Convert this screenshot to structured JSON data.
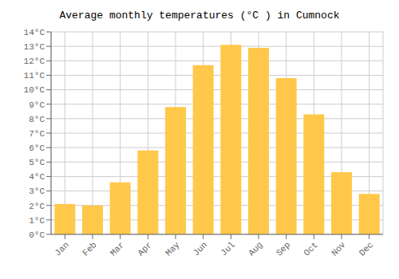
{
  "chart_data": {
    "type": "bar",
    "title": "Average monthly temperatures (°C ) in Cumnock",
    "categories": [
      "Jan",
      "Feb",
      "Mar",
      "Apr",
      "May",
      "Jun",
      "Jul",
      "Aug",
      "Sep",
      "Oct",
      "Nov",
      "Dec"
    ],
    "values": [
      2.1,
      2.0,
      3.6,
      5.8,
      8.8,
      11.7,
      13.1,
      12.9,
      10.8,
      8.3,
      4.3,
      2.8
    ],
    "color": "#FFC84A",
    "ylim": [
      0,
      14
    ],
    "yticks": [
      {
        "value": 0,
        "label": "0°C"
      },
      {
        "value": 1,
        "label": "1°C"
      },
      {
        "value": 2,
        "label": "2°C"
      },
      {
        "value": 3,
        "label": "3°C"
      },
      {
        "value": 4,
        "label": "4°C"
      },
      {
        "value": 5,
        "label": "5°C"
      },
      {
        "value": 6,
        "label": "6°C"
      },
      {
        "value": 7,
        "label": "7°C"
      },
      {
        "value": 8,
        "label": "8°C"
      },
      {
        "value": 9,
        "label": "9°C"
      },
      {
        "value": 10,
        "label": "10°C"
      },
      {
        "value": 11,
        "label": "11°C"
      },
      {
        "value": 12,
        "label": "12°C"
      },
      {
        "value": 13,
        "label": "13°C"
      },
      {
        "value": 14,
        "label": "14°C"
      }
    ],
    "grid": true
  }
}
